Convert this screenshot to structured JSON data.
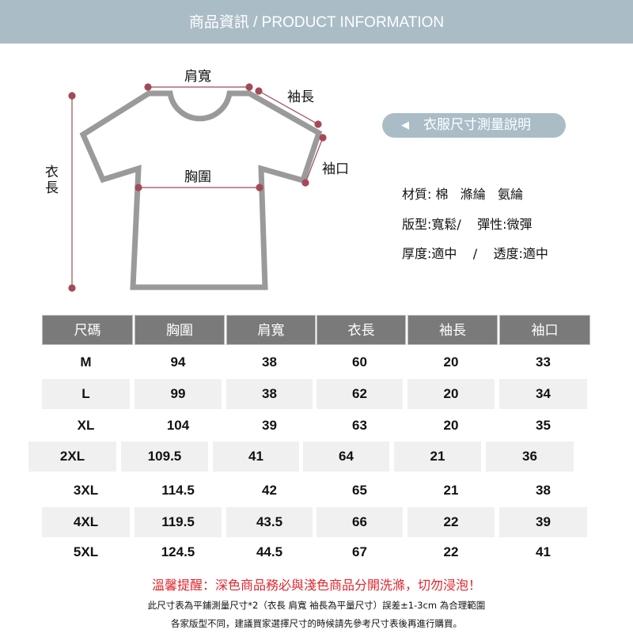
{
  "header": {
    "title": "商品資訊 / PRODUCT INFORMATION",
    "background": "#aabdc7"
  },
  "diagram": {
    "labels": {
      "shoulder": "肩寬",
      "sleeve_length": "袖長",
      "cuff": "袖口",
      "chest": "胸圍",
      "length": "衣長"
    },
    "marker_color": "#a34a58",
    "outline_color": "#999999"
  },
  "guide_button": {
    "icon": "triangle-left-icon",
    "label": "衣服尺寸測量說明"
  },
  "specs": {
    "material": "材質: 棉   滌綸   氨綸",
    "fit": "版型:寬鬆/    彈性:微彈",
    "thickness": "厚度:適中    /    透度:適中"
  },
  "size_table": {
    "columns": [
      "尺碼",
      "胸圍",
      "肩寬",
      "衣長",
      "袖長",
      "袖口"
    ],
    "rows": [
      [
        "M",
        "94",
        "38",
        "60",
        "20",
        "33"
      ],
      [
        "L",
        "99",
        "38",
        "62",
        "20",
        "34"
      ],
      [
        "XL",
        "104",
        "39",
        "63",
        "20",
        "35"
      ],
      [
        "2XL",
        "109.5",
        "41",
        "64",
        "21",
        "36"
      ],
      [
        "3XL",
        "114.5",
        "42",
        "65",
        "21",
        "38"
      ],
      [
        "4XL",
        "119.5",
        "43.5",
        "66",
        "22",
        "39"
      ],
      [
        "5XL",
        "124.5",
        "44.5",
        "67",
        "22",
        "41"
      ]
    ]
  },
  "footer": {
    "warning": "溫馨提醒：深色商品務必與淺色商品分開洗滌，切勿浸泡！",
    "note1": "此尺寸表為平鋪測量尺寸*2（衣長 肩寬 袖長為平量尺寸）誤差±1-3cm 為合理範圍",
    "note2": "各家版型不同，建議買家選擇尺寸的時候請先參考尺寸表後再進行購買。",
    "warning_color": "#e0262d"
  }
}
